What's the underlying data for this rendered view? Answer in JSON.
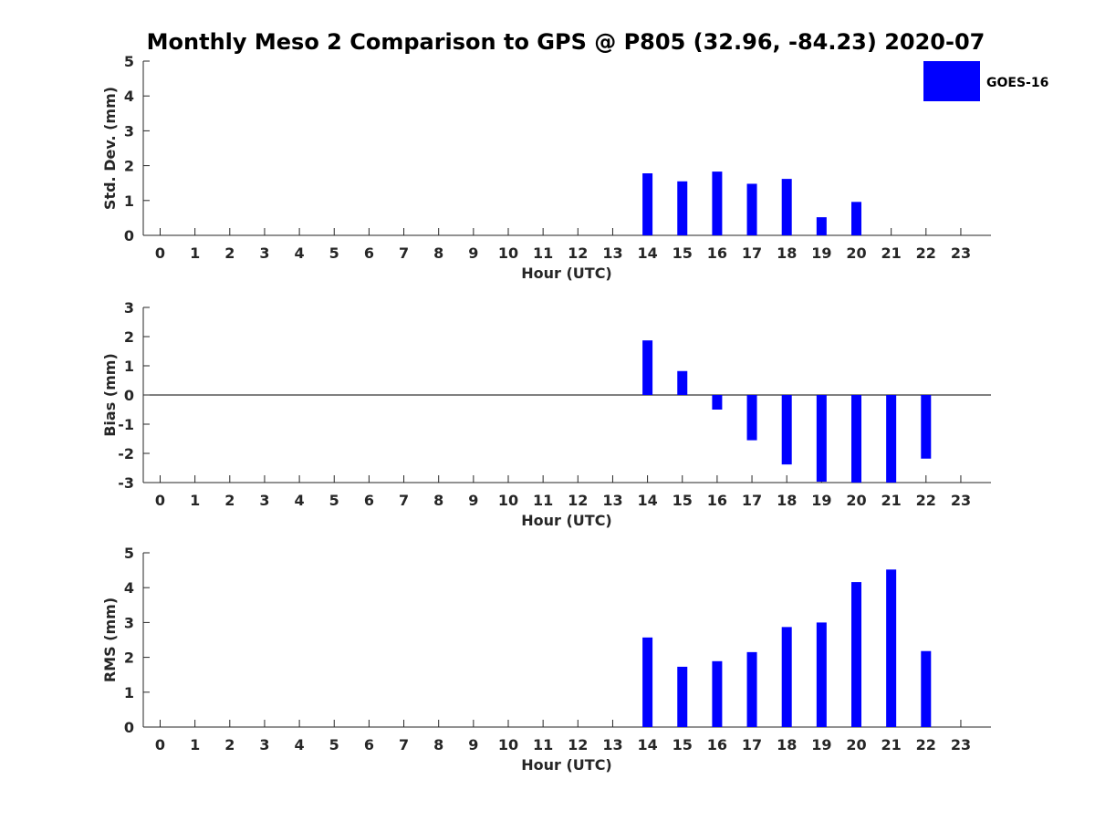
{
  "title": "Monthly Meso 2 Comparison to GPS @ P805 (32.96, -84.23) 2020-07",
  "legend": {
    "label": "GOES-16"
  },
  "colors": {
    "bar": "#0000ff",
    "axis": "#262626",
    "zero_line": "#000000"
  },
  "chart_data": [
    {
      "type": "bar",
      "name": "std-dev",
      "series_name": "GOES-16",
      "categories": [
        "0",
        "1",
        "2",
        "3",
        "4",
        "5",
        "6",
        "7",
        "8",
        "9",
        "10",
        "11",
        "12",
        "13",
        "14",
        "15",
        "16",
        "17",
        "18",
        "19",
        "20",
        "21",
        "22",
        "23"
      ],
      "values": [
        null,
        null,
        null,
        null,
        null,
        null,
        null,
        null,
        null,
        null,
        null,
        null,
        null,
        null,
        1.78,
        1.55,
        1.83,
        1.48,
        1.62,
        0.52,
        0.96,
        null,
        null,
        null
      ],
      "xlabel": "Hour (UTC)",
      "ylabel": "Std. Dev. (mm)",
      "ylim": [
        0,
        5
      ],
      "yticks": [
        "0",
        "1",
        "2",
        "3",
        "4",
        "5"
      ]
    },
    {
      "type": "bar",
      "name": "bias",
      "series_name": "GOES-16",
      "categories": [
        "0",
        "1",
        "2",
        "3",
        "4",
        "5",
        "6",
        "7",
        "8",
        "9",
        "10",
        "11",
        "12",
        "13",
        "14",
        "15",
        "16",
        "17",
        "18",
        "19",
        "20",
        "21",
        "22",
        "23"
      ],
      "values": [
        null,
        null,
        null,
        null,
        null,
        null,
        null,
        null,
        null,
        null,
        null,
        null,
        null,
        null,
        1.87,
        0.82,
        -0.5,
        -1.55,
        -2.38,
        -2.97,
        -3.0,
        -3.0,
        -2.18,
        null
      ],
      "xlabel": "Hour (UTC)",
      "ylabel": "Bias (mm)",
      "ylim": [
        -3,
        3
      ],
      "yticks": [
        "-3",
        "-2",
        "-1",
        "0",
        "1",
        "2",
        "3"
      ]
    },
    {
      "type": "bar",
      "name": "rms",
      "series_name": "GOES-16",
      "categories": [
        "0",
        "1",
        "2",
        "3",
        "4",
        "5",
        "6",
        "7",
        "8",
        "9",
        "10",
        "11",
        "12",
        "13",
        "14",
        "15",
        "16",
        "17",
        "18",
        "19",
        "20",
        "21",
        "22",
        "23"
      ],
      "values": [
        null,
        null,
        null,
        null,
        null,
        null,
        null,
        null,
        null,
        null,
        null,
        null,
        null,
        null,
        2.57,
        1.73,
        1.89,
        2.15,
        2.87,
        3.0,
        4.16,
        4.52,
        2.18,
        null
      ],
      "xlabel": "Hour (UTC)",
      "ylabel": "RMS (mm)",
      "ylim": [
        0,
        5
      ],
      "yticks": [
        "0",
        "1",
        "2",
        "3",
        "4",
        "5"
      ]
    }
  ]
}
